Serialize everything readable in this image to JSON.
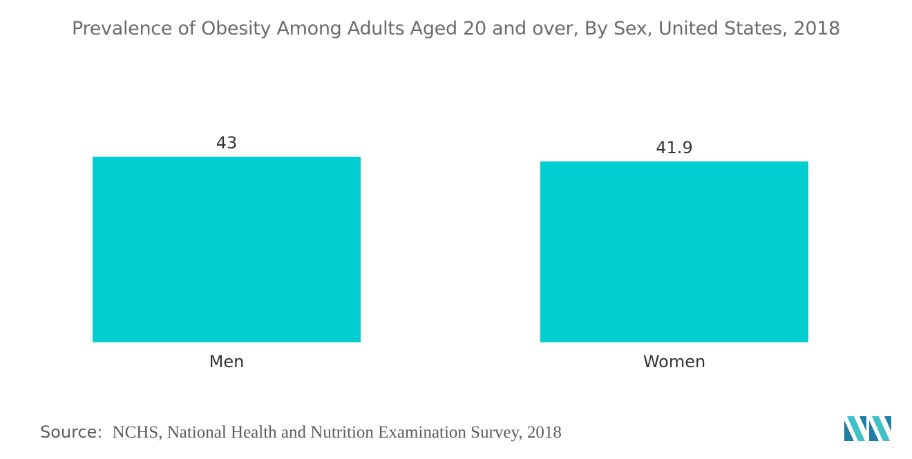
{
  "chart_data": {
    "type": "bar",
    "title": "Prevalence of Obesity Among Adults Aged 20 and over, By Sex, United States, 2018",
    "categories": [
      "Men",
      "Women"
    ],
    "values": [
      43,
      41.9
    ],
    "value_labels": [
      "43",
      "41.9"
    ],
    "ylim": [
      0,
      43
    ],
    "grid": false,
    "legend": "none",
    "bar_color": "#00CED1"
  },
  "source": {
    "label": "Source:",
    "text": "NCHS, National Health and Nutrition Examination Survey, 2018"
  },
  "logo": {
    "icon": "mordor-intelligence-logo-icon",
    "colors": [
      "#1f7ea5",
      "#3fc1c9"
    ]
  }
}
